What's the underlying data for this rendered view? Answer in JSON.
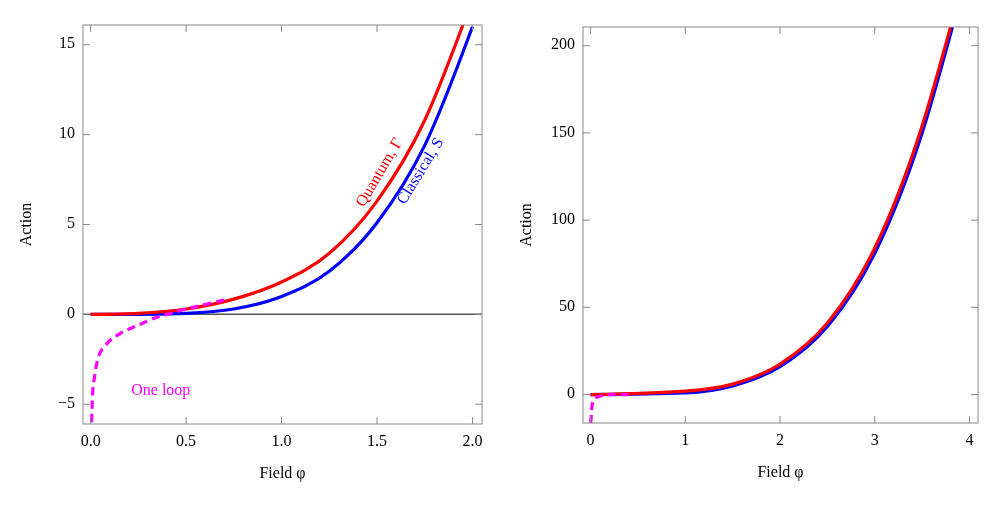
{
  "chart_data": [
    {
      "type": "line",
      "xlabel": "Field φ",
      "ylabel": "Action",
      "xlim": [
        -0.04,
        2.05
      ],
      "ylim": [
        -6.1,
        16.1
      ],
      "xticks": [
        {
          "value": 0,
          "label": "0.0"
        },
        0.5,
        {
          "value": 1,
          "label": "1.0"
        },
        1.5,
        {
          "value": 2,
          "label": "2.0"
        }
      ],
      "yticks": [
        -5,
        0,
        5,
        10,
        15
      ],
      "grid": false,
      "legend": false,
      "marker": "none",
      "ref_lines": [
        {
          "axis": "y",
          "value": 0,
          "color": "#555555"
        }
      ],
      "series": [
        {
          "name": "Classical, S",
          "color": "#0000ff",
          "line_style": "solid",
          "x": [
            0,
            0.25,
            0.5,
            0.75,
            1.0,
            1.25,
            1.5,
            1.75,
            2.0
          ],
          "values": [
            0,
            0,
            0.06,
            0.3,
            1,
            2.4,
            5.1,
            9.4,
            16
          ]
        },
        {
          "name": "Quantum, Γ",
          "color": "#ff0000",
          "line_style": "solid",
          "x": [
            0,
            0.25,
            0.5,
            0.75,
            1.0,
            1.25,
            1.5,
            1.75,
            1.95
          ],
          "values": [
            0,
            0.06,
            0.3,
            0.85,
            1.8,
            3.4,
            6.3,
            10.8,
            16.1
          ]
        },
        {
          "name": "One loop",
          "color": "#ff00ff",
          "line_style": "dashed",
          "x": [
            0.005,
            0.01,
            0.02,
            0.04,
            0.08,
            0.15,
            0.25,
            0.35,
            0.4,
            0.5,
            0.6,
            0.7
          ],
          "values": [
            -6,
            -4.5,
            -3.5,
            -2.4,
            -1.7,
            -1.1,
            -0.6,
            -0.15,
            0,
            0.3,
            0.55,
            0.8
          ]
        }
      ]
    },
    {
      "type": "line",
      "xlabel": "Field φ",
      "ylabel": "Action",
      "xlim": [
        -0.08,
        4.09
      ],
      "ylim": [
        -16.3,
        210.7
      ],
      "xticks": [
        0,
        1,
        2,
        3,
        4
      ],
      "yticks": [
        0,
        50,
        100,
        150,
        200
      ],
      "grid": false,
      "legend": false,
      "marker": "none",
      "series": [
        {
          "color": "#0000ff",
          "line_style": "solid",
          "x": [
            0,
            1,
            1.5,
            2,
            2.5,
            3,
            3.5,
            3.82
          ],
          "values": [
            0,
            1,
            5,
            16,
            39,
            81,
            150,
            210.7
          ]
        },
        {
          "color": "#ff0000",
          "line_style": "solid",
          "x": [
            0,
            1,
            1.5,
            2,
            2.5,
            3,
            3.5,
            3.8
          ],
          "values": [
            0,
            2,
            6,
            17.5,
            41,
            84,
            154,
            210.7
          ]
        },
        {
          "color": "#ff00ff",
          "line_style": "dashed",
          "x": [
            0.002,
            0.02,
            0.05,
            0.1,
            0.2,
            0.4
          ],
          "values": [
            -16.3,
            -5,
            -2,
            -1,
            0,
            0
          ]
        }
      ]
    }
  ]
}
